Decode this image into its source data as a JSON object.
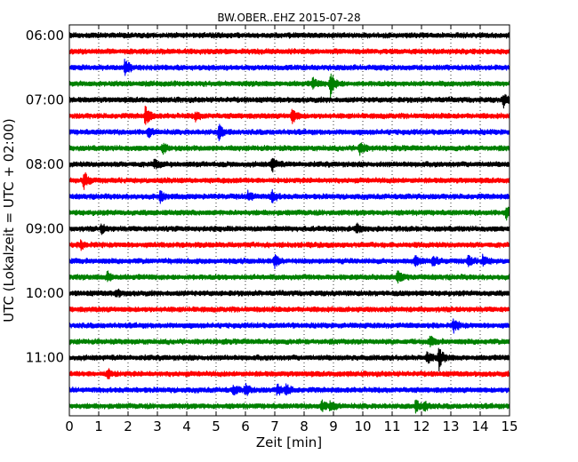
{
  "chart_data": {
    "type": "line",
    "title": "BW.OBER..EHZ 2015-07-28",
    "xlabel": "Zeit  [min]",
    "ylabel": "UTC (Lokalzeit = UTC + 02:00)",
    "xlim": [
      0,
      15
    ],
    "x_ticks": [
      "0",
      "1",
      "2",
      "3",
      "4",
      "5",
      "6",
      "7",
      "8",
      "9",
      "10",
      "11",
      "12",
      "13",
      "14",
      "15"
    ],
    "y_ticks": [
      "06:00",
      "07:00",
      "08:00",
      "09:00",
      "10:00",
      "11:00"
    ],
    "grid": true,
    "series_colors": [
      "#000000",
      "#ff0000",
      "#0000ff",
      "#008000"
    ],
    "traces": [
      {
        "start": "06:00",
        "color": "#000000",
        "events": []
      },
      {
        "start": "06:15",
        "color": "#ff0000",
        "events": []
      },
      {
        "start": "06:30",
        "color": "#0000ff",
        "events": [
          {
            "t": 1.9,
            "amp": 3.2
          }
        ]
      },
      {
        "start": "06:45",
        "color": "#008000",
        "events": [
          {
            "t": 8.3,
            "amp": 1.6
          },
          {
            "t": 8.9,
            "amp": 4.2
          }
        ]
      },
      {
        "start": "07:00",
        "color": "#000000",
        "events": [
          {
            "t": 14.8,
            "amp": 2.0
          }
        ]
      },
      {
        "start": "07:15",
        "color": "#ff0000",
        "events": [
          {
            "t": 2.6,
            "amp": 3.2
          },
          {
            "t": 7.6,
            "amp": 2.4
          },
          {
            "t": 4.3,
            "amp": 1.5
          }
        ]
      },
      {
        "start": "07:30",
        "color": "#0000ff",
        "events": [
          {
            "t": 5.1,
            "amp": 2.6
          },
          {
            "t": 2.7,
            "amp": 1.4
          }
        ]
      },
      {
        "start": "07:45",
        "color": "#008000",
        "events": [
          {
            "t": 9.9,
            "amp": 2.2
          },
          {
            "t": 3.2,
            "amp": 1.4
          }
        ]
      },
      {
        "start": "08:00",
        "color": "#000000",
        "events": [
          {
            "t": 6.9,
            "amp": 2.4
          },
          {
            "t": 2.9,
            "amp": 1.4
          }
        ]
      },
      {
        "start": "08:15",
        "color": "#ff0000",
        "events": [
          {
            "t": 0.5,
            "amp": 3.0
          }
        ]
      },
      {
        "start": "08:30",
        "color": "#0000ff",
        "events": [
          {
            "t": 6.9,
            "amp": 2.2
          },
          {
            "t": 6.1,
            "amp": 1.8
          },
          {
            "t": 3.1,
            "amp": 1.6
          }
        ]
      },
      {
        "start": "08:45",
        "color": "#008000",
        "events": [
          {
            "t": 14.9,
            "amp": 2.0
          }
        ]
      },
      {
        "start": "09:00",
        "color": "#000000",
        "events": [
          {
            "t": 9.8,
            "amp": 1.5
          },
          {
            "t": 1.1,
            "amp": 1.3
          }
        ]
      },
      {
        "start": "09:15",
        "color": "#ff0000",
        "events": [
          {
            "t": 0.4,
            "amp": 1.2
          }
        ]
      },
      {
        "start": "09:30",
        "color": "#0000ff",
        "events": [
          {
            "t": 7.0,
            "amp": 1.8
          },
          {
            "t": 11.8,
            "amp": 1.8
          },
          {
            "t": 12.4,
            "amp": 1.9
          },
          {
            "t": 13.6,
            "amp": 1.6
          },
          {
            "t": 14.1,
            "amp": 1.8
          }
        ]
      },
      {
        "start": "09:45",
        "color": "#008000",
        "events": [
          {
            "t": 1.3,
            "amp": 1.6
          },
          {
            "t": 11.2,
            "amp": 1.7
          }
        ]
      },
      {
        "start": "10:00",
        "color": "#000000",
        "events": [
          {
            "t": 1.6,
            "amp": 1.2
          }
        ]
      },
      {
        "start": "10:15",
        "color": "#ff0000",
        "events": []
      },
      {
        "start": "10:30",
        "color": "#0000ff",
        "events": [
          {
            "t": 13.1,
            "amp": 2.0
          }
        ]
      },
      {
        "start": "10:45",
        "color": "#008000",
        "events": [
          {
            "t": 12.3,
            "amp": 1.4
          }
        ]
      },
      {
        "start": "11:00",
        "color": "#000000",
        "events": [
          {
            "t": 12.6,
            "amp": 3.6
          },
          {
            "t": 12.2,
            "amp": 1.8
          }
        ]
      },
      {
        "start": "11:15",
        "color": "#ff0000",
        "events": [
          {
            "t": 1.3,
            "amp": 1.6
          }
        ]
      },
      {
        "start": "11:30",
        "color": "#0000ff",
        "events": [
          {
            "t": 6.0,
            "amp": 1.8
          },
          {
            "t": 7.1,
            "amp": 1.8
          },
          {
            "t": 7.4,
            "amp": 1.5
          },
          {
            "t": 5.6,
            "amp": 1.4
          }
        ]
      },
      {
        "start": "11:45",
        "color": "#008000",
        "events": [
          {
            "t": 8.6,
            "amp": 1.8
          },
          {
            "t": 11.8,
            "amp": 2.0
          },
          {
            "t": 8.9,
            "amp": 1.6
          },
          {
            "t": 12.1,
            "amp": 1.5
          }
        ]
      }
    ]
  }
}
